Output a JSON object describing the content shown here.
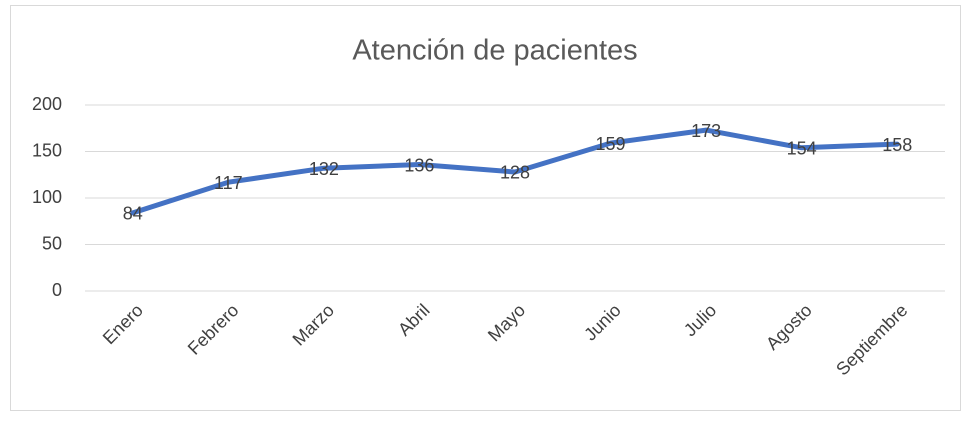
{
  "chart_data": {
    "type": "line",
    "title": "Atención de pacientes",
    "categories": [
      "Enero",
      "Febrero",
      "Marzo",
      "Abril",
      "Mayo",
      "Junio",
      "Julio",
      "Agosto",
      "Septiembre"
    ],
    "values": [
      84,
      117,
      132,
      136,
      128,
      159,
      173,
      154,
      158
    ],
    "color": "#4472c4",
    "ylim": [
      0,
      200
    ],
    "yticks": [
      0,
      50,
      100,
      150,
      200
    ],
    "grid": true,
    "data_labels": true
  }
}
